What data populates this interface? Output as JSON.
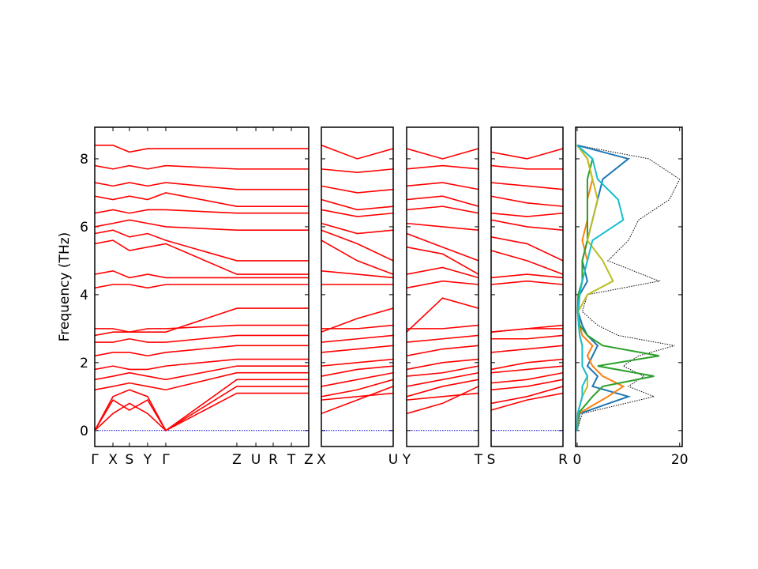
{
  "chart_data": [
    {
      "type": "line",
      "ylabel": "Frequency (THz)",
      "color": "#ff0000",
      "hline": 0,
      "hline_color": "#0000cc",
      "xlim": [
        0,
        1
      ],
      "ylim": [
        -0.47,
        8.93
      ],
      "yticks": [
        0,
        2,
        4,
        6,
        8
      ],
      "xticks": [
        {
          "value": 0,
          "label": "Γ"
        },
        {
          "value": 0.085,
          "label": "X"
        },
        {
          "value": 0.162,
          "label": "S"
        },
        {
          "value": 0.247,
          "label": "Y"
        },
        {
          "value": 0.332,
          "label": "Γ"
        },
        {
          "value": 0.664,
          "label": "Z"
        },
        {
          "value": 0.753,
          "label": "U"
        },
        {
          "value": 0.834,
          "label": "R"
        },
        {
          "value": 0.919,
          "label": "T"
        },
        {
          "value": 1,
          "label": "Z"
        }
      ],
      "x": [
        0,
        0.085,
        0.162,
        0.247,
        0.332,
        0.664,
        0.753,
        0.834,
        0.919,
        1
      ],
      "series": [
        {
          "values": [
            0,
            0.9,
            0.6,
            0.9,
            0,
            1.1,
            1.1,
            1.1,
            1.1,
            1.1
          ]
        },
        {
          "values": [
            0,
            0.5,
            0.8,
            0.5,
            0,
            1.3,
            1.3,
            1.3,
            1.3,
            1.3
          ]
        },
        {
          "values": [
            0,
            1.0,
            1.2,
            1.0,
            0,
            1.5,
            1.5,
            1.5,
            1.5,
            1.5
          ]
        },
        {
          "values": [
            1.2,
            1.3,
            1.4,
            1.3,
            1.2,
            1.7,
            1.7,
            1.7,
            1.7,
            1.7
          ]
        },
        {
          "values": [
            1.5,
            1.6,
            1.7,
            1.6,
            1.5,
            1.9,
            1.9,
            1.9,
            1.9,
            1.9
          ]
        },
        {
          "values": [
            1.8,
            1.9,
            1.8,
            1.8,
            1.9,
            2.1,
            2.1,
            2.1,
            2.1,
            2.1
          ]
        },
        {
          "values": [
            2.2,
            2.3,
            2.3,
            2.2,
            2.3,
            2.5,
            2.5,
            2.5,
            2.5,
            2.5
          ]
        },
        {
          "values": [
            2.6,
            2.6,
            2.7,
            2.6,
            2.6,
            2.8,
            2.8,
            2.8,
            2.8,
            2.8
          ]
        },
        {
          "values": [
            3.0,
            3.0,
            2.9,
            3.0,
            3.0,
            3.1,
            3.1,
            3.1,
            3.1,
            3.1
          ]
        },
        {
          "values": [
            2.8,
            2.9,
            2.9,
            2.9,
            2.9,
            3.6,
            3.6,
            3.6,
            3.6,
            3.6
          ]
        },
        {
          "values": [
            4.2,
            4.3,
            4.3,
            4.2,
            4.3,
            4.3,
            4.3,
            4.3,
            4.3,
            4.3
          ]
        },
        {
          "values": [
            4.6,
            4.7,
            4.5,
            4.6,
            4.5,
            4.5,
            4.5,
            4.5,
            4.5,
            4.5
          ]
        },
        {
          "values": [
            5.5,
            5.6,
            5.3,
            5.4,
            5.5,
            4.6,
            4.6,
            4.6,
            4.6,
            4.6
          ]
        },
        {
          "values": [
            5.8,
            5.9,
            5.7,
            5.8,
            5.6,
            5.0,
            5.0,
            5.0,
            5.0,
            5.0
          ]
        },
        {
          "values": [
            6.0,
            6.1,
            6.2,
            6.1,
            6.0,
            5.9,
            5.9,
            5.9,
            5.9,
            5.9
          ]
        },
        {
          "values": [
            6.4,
            6.5,
            6.4,
            6.5,
            6.5,
            6.4,
            6.4,
            6.4,
            6.4,
            6.4
          ]
        },
        {
          "values": [
            6.9,
            6.8,
            6.9,
            6.8,
            7.0,
            6.6,
            6.6,
            6.6,
            6.6,
            6.6
          ]
        },
        {
          "values": [
            7.3,
            7.2,
            7.3,
            7.2,
            7.3,
            7.1,
            7.1,
            7.1,
            7.1,
            7.1
          ]
        },
        {
          "values": [
            7.8,
            7.7,
            7.8,
            7.7,
            7.8,
            7.7,
            7.7,
            7.7,
            7.7,
            7.7
          ]
        },
        {
          "values": [
            8.4,
            8.4,
            8.2,
            8.3,
            8.3,
            8.3,
            8.3,
            8.3,
            8.3,
            8.3
          ]
        }
      ]
    },
    {
      "type": "line",
      "color": "#ff0000",
      "hline": 0,
      "hline_color": "#0000cc",
      "xlim": [
        0,
        1
      ],
      "ylim": [
        -0.47,
        8.93
      ],
      "xticks": [
        {
          "value": 0,
          "label": "X"
        },
        {
          "value": 1,
          "label": "U"
        }
      ],
      "x": [
        0,
        0.5,
        1
      ],
      "series": [
        {
          "values": [
            0.9,
            1.0,
            1.1
          ]
        },
        {
          "values": [
            0.5,
            0.9,
            1.3
          ]
        },
        {
          "values": [
            1.0,
            1.2,
            1.5
          ]
        },
        {
          "values": [
            1.3,
            1.5,
            1.7
          ]
        },
        {
          "values": [
            1.6,
            1.8,
            1.9
          ]
        },
        {
          "values": [
            1.9,
            2.0,
            2.1
          ]
        },
        {
          "values": [
            2.3,
            2.4,
            2.5
          ]
        },
        {
          "values": [
            2.6,
            2.7,
            2.8
          ]
        },
        {
          "values": [
            3.0,
            3.0,
            3.1
          ]
        },
        {
          "values": [
            2.9,
            3.3,
            3.6
          ]
        },
        {
          "values": [
            4.3,
            4.3,
            4.3
          ]
        },
        {
          "values": [
            4.7,
            4.6,
            4.5
          ]
        },
        {
          "values": [
            5.6,
            5.0,
            4.6
          ]
        },
        {
          "values": [
            5.9,
            5.5,
            5.0
          ]
        },
        {
          "values": [
            6.1,
            5.8,
            5.9
          ]
        },
        {
          "values": [
            6.5,
            6.3,
            6.4
          ]
        },
        {
          "values": [
            6.8,
            6.5,
            6.6
          ]
        },
        {
          "values": [
            7.2,
            7.0,
            7.1
          ]
        },
        {
          "values": [
            7.7,
            7.6,
            7.7
          ]
        },
        {
          "values": [
            8.4,
            8.0,
            8.3
          ]
        }
      ]
    },
    {
      "type": "line",
      "color": "#ff0000",
      "hline": 0,
      "hline_color": "#0000cc",
      "xlim": [
        0,
        1
      ],
      "ylim": [
        -0.47,
        8.93
      ],
      "xticks": [
        {
          "value": 0,
          "label": "Y"
        },
        {
          "value": 1,
          "label": "T"
        }
      ],
      "x": [
        0,
        0.5,
        1
      ],
      "series": [
        {
          "values": [
            0.9,
            1.0,
            1.1
          ]
        },
        {
          "values": [
            0.5,
            0.8,
            1.3
          ]
        },
        {
          "values": [
            1.0,
            1.3,
            1.5
          ]
        },
        {
          "values": [
            1.3,
            1.5,
            1.7
          ]
        },
        {
          "values": [
            1.6,
            1.7,
            1.9
          ]
        },
        {
          "values": [
            1.8,
            2.0,
            2.1
          ]
        },
        {
          "values": [
            2.2,
            2.4,
            2.5
          ]
        },
        {
          "values": [
            2.6,
            2.7,
            2.8
          ]
        },
        {
          "values": [
            3.0,
            3.0,
            3.1
          ]
        },
        {
          "values": [
            2.9,
            3.9,
            3.6
          ]
        },
        {
          "values": [
            4.2,
            4.4,
            4.3
          ]
        },
        {
          "values": [
            4.6,
            4.8,
            4.5
          ]
        },
        {
          "values": [
            5.4,
            5.2,
            4.6
          ]
        },
        {
          "values": [
            5.8,
            5.4,
            5.0
          ]
        },
        {
          "values": [
            6.1,
            6.0,
            5.9
          ]
        },
        {
          "values": [
            6.5,
            6.6,
            6.4
          ]
        },
        {
          "values": [
            6.8,
            6.9,
            6.6
          ]
        },
        {
          "values": [
            7.2,
            7.3,
            7.1
          ]
        },
        {
          "values": [
            7.7,
            7.8,
            7.7
          ]
        },
        {
          "values": [
            8.3,
            8.0,
            8.3
          ]
        }
      ]
    },
    {
      "type": "line",
      "color": "#ff0000",
      "hline": 0,
      "hline_color": "#0000cc",
      "xlim": [
        0,
        1
      ],
      "ylim": [
        -0.47,
        8.93
      ],
      "xticks": [
        {
          "value": 0,
          "label": "S"
        },
        {
          "value": 1,
          "label": "R"
        }
      ],
      "x": [
        0,
        0.5,
        1
      ],
      "series": [
        {
          "values": [
            0.6,
            0.9,
            1.1
          ]
        },
        {
          "values": [
            0.8,
            1.0,
            1.3
          ]
        },
        {
          "values": [
            1.2,
            1.3,
            1.5
          ]
        },
        {
          "values": [
            1.4,
            1.5,
            1.7
          ]
        },
        {
          "values": [
            1.7,
            1.8,
            1.9
          ]
        },
        {
          "values": [
            1.8,
            2.0,
            2.1
          ]
        },
        {
          "values": [
            2.3,
            2.4,
            2.5
          ]
        },
        {
          "values": [
            2.7,
            2.7,
            2.8
          ]
        },
        {
          "values": [
            2.9,
            3.0,
            3.1
          ]
        },
        {
          "values": [
            2.9,
            3.0,
            3.0
          ]
        },
        {
          "values": [
            4.3,
            4.4,
            4.3
          ]
        },
        {
          "values": [
            4.5,
            4.6,
            4.5
          ]
        },
        {
          "values": [
            5.3,
            5.0,
            4.6
          ]
        },
        {
          "values": [
            5.7,
            5.5,
            5.0
          ]
        },
        {
          "values": [
            6.2,
            6.0,
            5.9
          ]
        },
        {
          "values": [
            6.4,
            6.3,
            6.4
          ]
        },
        {
          "values": [
            6.9,
            6.7,
            6.6
          ]
        },
        {
          "values": [
            7.3,
            7.2,
            7.1
          ]
        },
        {
          "values": [
            7.8,
            7.7,
            7.7
          ]
        },
        {
          "values": [
            8.2,
            8.0,
            8.3
          ]
        }
      ]
    },
    {
      "type": "dos",
      "xlim": [
        -0.3,
        20.5
      ],
      "ylim": [
        -0.47,
        8.93
      ],
      "xticks": [
        0,
        20
      ],
      "y": [
        0,
        0.5,
        1,
        1.3,
        1.6,
        1.9,
        2.2,
        2.5,
        2.8,
        3.1,
        3.5,
        4.0,
        4.4,
        5.0,
        5.6,
        6.2,
        6.8,
        7.4,
        8.0,
        8.4
      ],
      "total": {
        "color": "#000000",
        "values": [
          0,
          1,
          15,
          10,
          13,
          9,
          12,
          19,
          8,
          4,
          1,
          2,
          16,
          6,
          10,
          12,
          18,
          20,
          14,
          0
        ]
      },
      "series": [
        {
          "color": "#1f77b4",
          "values": [
            0,
            0.5,
            10,
            3,
            4,
            2,
            3,
            4,
            2,
            1,
            0.2,
            0.5,
            2,
            1,
            2,
            3,
            4,
            5,
            10,
            0
          ]
        },
        {
          "color": "#ff7f0e",
          "values": [
            0,
            0.3,
            6,
            9,
            5,
            3,
            2,
            3,
            1,
            0.5,
            0.1,
            0.3,
            1,
            2,
            1,
            2,
            2,
            3,
            2,
            0
          ]
        },
        {
          "color": "#2ca02c",
          "values": [
            0,
            0.2,
            3,
            5,
            15,
            4,
            16,
            5,
            2,
            0.5,
            0.1,
            0.2,
            1,
            1,
            2,
            2,
            2,
            2,
            3,
            0
          ]
        },
        {
          "color": "#bcbd22",
          "values": [
            0,
            0.1,
            1,
            2,
            2,
            1,
            1,
            1,
            0.5,
            0.3,
            0.2,
            2,
            7,
            5,
            2,
            3,
            4,
            3,
            2,
            0
          ]
        },
        {
          "color": "#17becf",
          "values": [
            0,
            0.1,
            1,
            1,
            2,
            1,
            1,
            1,
            0.5,
            0.3,
            0.1,
            0.5,
            1,
            2,
            3,
            9,
            8,
            4,
            3,
            0
          ]
        }
      ]
    }
  ]
}
